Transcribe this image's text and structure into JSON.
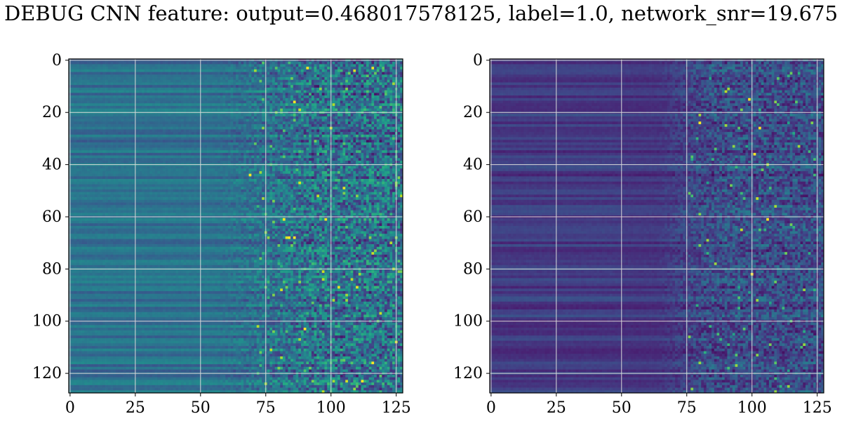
{
  "title": "DEBUG CNN feature: output=0.468017578125, label=1.0, network_snr=19.675",
  "chart_data": [
    {
      "type": "heatmap",
      "title": "",
      "xlabel": "",
      "ylabel": "",
      "x_ticks": [
        0,
        25,
        50,
        75,
        100,
        125
      ],
      "y_ticks": [
        0,
        20,
        40,
        60,
        80,
        100,
        120
      ],
      "xlim": [
        -0.5,
        127.5
      ],
      "ylim": [
        127.5,
        -0.5
      ],
      "grid": true,
      "colormap": "viridis",
      "shape": [
        128,
        128
      ],
      "description_values": "128x128 feature map; left columns smooth row-wise bands, noisy activations grow right of column ~60; bright spots near rows 3, 16, 61, 68, 103"
    },
    {
      "type": "heatmap",
      "title": "",
      "xlabel": "",
      "ylabel": "",
      "x_ticks": [
        0,
        25,
        50,
        75,
        100,
        125
      ],
      "y_ticks": [
        0,
        20,
        40,
        60,
        80,
        100,
        120
      ],
      "xlim": [
        -0.5,
        127.5
      ],
      "ylim": [
        127.5,
        -0.5
      ],
      "grid": true,
      "colormap": "viridis",
      "shape": [
        128,
        128
      ],
      "description_values": "128x128 feature map; dark purple banded left half, sparse noisy activations right of column ~75; bright spots near rows 15, 26, 36, 61, 82"
    }
  ]
}
